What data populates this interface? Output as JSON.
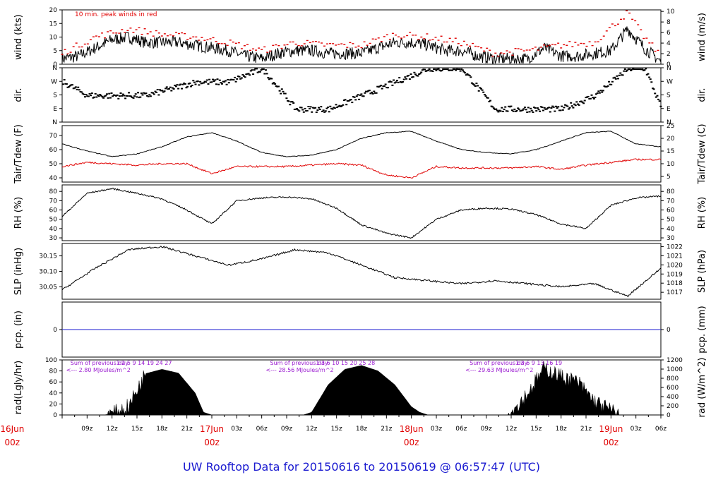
{
  "title": "UW Rooftop Data for 20150616  to  20150619 @ 06:57:47  (UTC)",
  "colors": {
    "title": "#1a1ad0",
    "red": "#e00000",
    "purple": "#9a1ad0",
    "blue": "#1a1ad0",
    "ink": "#000000"
  },
  "time_axis": {
    "hour_ticks": [
      "09z",
      "12z",
      "15z",
      "18z",
      "21z",
      "03z",
      "06z",
      "09z",
      "12z",
      "15z",
      "18z",
      "21z",
      "03z",
      "06z",
      "09z",
      "12z",
      "15z",
      "18z",
      "21z",
      "03z",
      "06z"
    ],
    "day_labels": [
      {
        "date": "16Jun",
        "hour": "00z"
      },
      {
        "date": "17Jun",
        "hour": "00z"
      },
      {
        "date": "18Jun",
        "hour": "00z"
      },
      {
        "date": "19Jun",
        "hour": "00z"
      }
    ]
  },
  "panels": {
    "wind": {
      "left_label": "wind (kts)",
      "right_label": "wind (m/s)",
      "note": "10 min. peak winds in red",
      "left_ticks": [
        "0",
        "5",
        "10",
        "15",
        "20"
      ],
      "right_ticks": [
        "0",
        "2",
        "4",
        "6",
        "8",
        "10"
      ]
    },
    "dir": {
      "left_label": "dir.",
      "right_label": "dir.",
      "ticks": [
        "N",
        "E",
        "S",
        "W",
        "N"
      ]
    },
    "temp": {
      "left_label": "Tair/Tdew (F)",
      "right_label": "Tair/Tdew (C)",
      "left_ticks": [
        "40",
        "50",
        "60",
        "70"
      ],
      "right_ticks": [
        "5",
        "10",
        "15",
        "20",
        "25"
      ]
    },
    "rh": {
      "left_label": "RH (%)",
      "right_label": "RH (%)",
      "ticks": [
        "30",
        "40",
        "50",
        "60",
        "70",
        "80"
      ]
    },
    "slp": {
      "left_label": "SLP (inHg)",
      "right_label": "SLP (hPa)",
      "left_ticks": [
        "30.05",
        "30.10",
        "30.15"
      ],
      "right_ticks": [
        "1017",
        "1018",
        "1019",
        "1020",
        "1021",
        "1022"
      ]
    },
    "pcp": {
      "left_label": "pcp. (in)",
      "right_label": "pcp. (mm)",
      "left_ticks": [
        "0"
      ],
      "right_ticks": [
        "0"
      ]
    },
    "rad": {
      "left_label": "rad(Lgly/hr)",
      "right_label": "rad (W/m^2)",
      "left_ticks": [
        "0",
        "20",
        "40",
        "60",
        "80",
        "100"
      ],
      "right_ticks": [
        "0",
        "200",
        "400",
        "600",
        "800",
        "1000",
        "1200"
      ],
      "days": [
        {
          "sum_label": "Sum of previous day",
          "sum_value": "<--- 2.80 MJoules/m^2",
          "hour_marks": "1   2   5   9   14   19   24   27"
        },
        {
          "sum_label": "Sum of previous day",
          "sum_value": "<--- 28.56 MJoules/m^2",
          "hour_marks": "1   3   6   10   15   20   25   28"
        },
        {
          "sum_label": "Sum of previous day",
          "sum_value": "<--- 29.63 MJoules/m^2",
          "hour_marks": "1   3   6   9   13   16   19"
        }
      ]
    }
  },
  "chart_data": [
    {
      "type": "line",
      "panel": "wind",
      "units": "kts",
      "x_unit": "hours UTC from 16Jun 06z",
      "series": [
        {
          "name": "wind",
          "x": [
            0,
            2,
            4,
            6,
            8,
            10,
            12,
            14,
            16,
            18,
            20,
            22,
            24,
            26,
            28,
            30,
            32,
            34,
            36,
            38,
            40,
            42,
            44,
            46,
            48,
            50,
            52,
            54,
            56,
            58,
            60,
            62,
            64,
            66,
            68,
            70,
            72
          ],
          "y": [
            2,
            3,
            6,
            9,
            10,
            8,
            8,
            8,
            7,
            6,
            5,
            3,
            2,
            4,
            5,
            5,
            4,
            4,
            4,
            6,
            8,
            8,
            7,
            5,
            5,
            3,
            2,
            2,
            2,
            6,
            3,
            3,
            4,
            5,
            13,
            6,
            1
          ]
        },
        {
          "name": "10 min. peak",
          "x": [
            0,
            4,
            8,
            12,
            16,
            20,
            24,
            28,
            32,
            36,
            40,
            44,
            48,
            52,
            56,
            60,
            64,
            68,
            70,
            72
          ],
          "y": [
            4,
            10,
            13,
            11,
            10,
            8,
            5,
            8,
            7,
            7,
            11,
            10,
            8,
            4,
            5,
            7,
            8,
            19,
            10,
            3
          ]
        }
      ]
    },
    {
      "type": "scatter",
      "panel": "dir",
      "ylim": [
        "N",
        "N"
      ],
      "series": [
        {
          "name": "dir.",
          "x": [
            0,
            3,
            6,
            10,
            16,
            20,
            24,
            28,
            32,
            36,
            40,
            44,
            48,
            52,
            56,
            60,
            64,
            66,
            68,
            70,
            72
          ],
          "y": [
            "W",
            "S",
            "S",
            "S",
            "W",
            "W",
            "N",
            "E",
            "E",
            "S",
            "W",
            "N",
            "N",
            "E",
            "E",
            "E",
            "S",
            "W",
            "N",
            "N",
            "E"
          ]
        }
      ]
    },
    {
      "type": "line",
      "panel": "temp",
      "units": "F",
      "series": [
        {
          "name": "Tair",
          "x": [
            0,
            3,
            6,
            9,
            12,
            15,
            18,
            21,
            24,
            27,
            30,
            33,
            36,
            39,
            42,
            45,
            48,
            51,
            54,
            57,
            60,
            63,
            66,
            69,
            72
          ],
          "y": [
            64,
            59,
            55,
            57,
            62,
            69,
            72,
            66,
            58,
            55,
            56,
            60,
            68,
            72,
            73,
            66,
            60,
            58,
            57,
            60,
            66,
            72,
            73,
            64,
            62
          ]
        },
        {
          "name": "Tdew",
          "x": [
            0,
            3,
            6,
            9,
            12,
            15,
            18,
            21,
            24,
            27,
            30,
            33,
            36,
            39,
            42,
            45,
            48,
            51,
            54,
            57,
            60,
            63,
            66,
            69,
            72
          ],
          "y": [
            48,
            51,
            50,
            49,
            50,
            50,
            43,
            48,
            48,
            48,
            49,
            50,
            49,
            42,
            40,
            48,
            47,
            47,
            47,
            48,
            46,
            49,
            51,
            53,
            53
          ]
        }
      ]
    },
    {
      "type": "line",
      "panel": "rh",
      "units": "%",
      "series": [
        {
          "name": "RH",
          "x": [
            0,
            3,
            6,
            9,
            12,
            15,
            18,
            21,
            24,
            27,
            30,
            33,
            36,
            39,
            42,
            45,
            48,
            51,
            54,
            57,
            60,
            63,
            66,
            69,
            72
          ],
          "y": [
            53,
            78,
            83,
            78,
            72,
            60,
            45,
            70,
            73,
            74,
            72,
            62,
            44,
            35,
            30,
            50,
            60,
            62,
            61,
            55,
            45,
            40,
            65,
            73,
            75
          ]
        }
      ]
    },
    {
      "type": "line",
      "panel": "slp",
      "units": "inHg",
      "series": [
        {
          "name": "SLP",
          "x": [
            0,
            4,
            8,
            12,
            16,
            20,
            24,
            28,
            32,
            36,
            40,
            44,
            48,
            52,
            56,
            60,
            64,
            68,
            72
          ],
          "y": [
            30.04,
            30.11,
            30.17,
            30.18,
            30.15,
            30.12,
            30.14,
            30.17,
            30.16,
            30.12,
            30.08,
            30.07,
            30.06,
            30.07,
            30.06,
            30.05,
            30.06,
            30.02,
            30.11
          ]
        }
      ]
    },
    {
      "type": "line",
      "panel": "pcp",
      "units": "in",
      "series": [
        {
          "name": "pcp",
          "x": [
            0,
            72
          ],
          "y": [
            0,
            0
          ]
        }
      ]
    },
    {
      "type": "area",
      "panel": "rad",
      "units": "Lgly/hr",
      "series": [
        {
          "name": "rad",
          "x": [
            0,
            5,
            6,
            8,
            10,
            12,
            14,
            16,
            17,
            18,
            20,
            29,
            30,
            32,
            34,
            36,
            38,
            40,
            42,
            43,
            44,
            46,
            53,
            54,
            56,
            58,
            60,
            62,
            64,
            66,
            67,
            72
          ],
          "y": [
            0,
            0,
            2,
            15,
            75,
            83,
            76,
            40,
            5,
            0,
            0,
            0,
            5,
            55,
            83,
            90,
            80,
            55,
            15,
            5,
            0,
            0,
            0,
            5,
            40,
            85,
            70,
            60,
            25,
            8,
            0,
            0
          ]
        }
      ]
    }
  ]
}
